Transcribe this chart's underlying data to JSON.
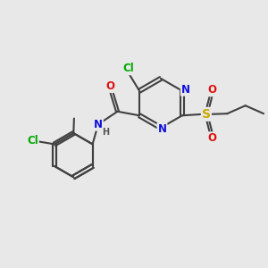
{
  "background_color": "#e8e8e8",
  "bond_color": "#404040",
  "bond_width": 1.5,
  "atom_colors": {
    "N": "#1010dd",
    "O": "#dd1010",
    "S": "#ccaa00",
    "Cl": "#00aa00",
    "H": "#555555"
  },
  "fontsize": 8.5
}
